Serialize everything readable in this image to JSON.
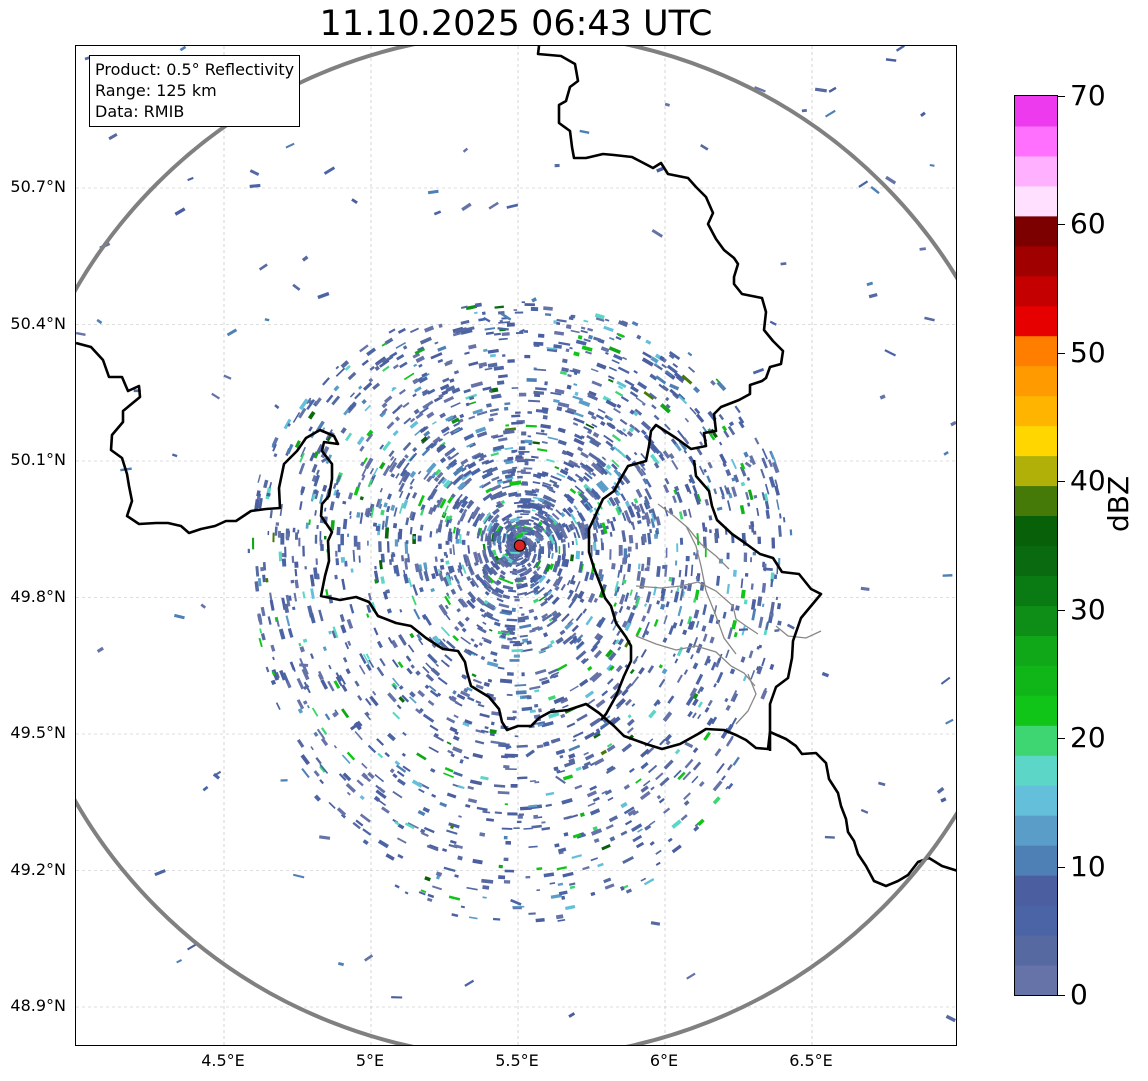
{
  "title": "11.10.2025 06:43 UTC",
  "info_box": {
    "product": "Product: 0.5° Reflectivity",
    "range": "Range: 125 km",
    "data": "Data: RMIB"
  },
  "map": {
    "lat_ticks": [
      {
        "value": 50.7,
        "label": "50.7°N"
      },
      {
        "value": 50.4,
        "label": "50.4°N"
      },
      {
        "value": 50.1,
        "label": "50.1°N"
      },
      {
        "value": 49.8,
        "label": "49.8°N"
      },
      {
        "value": 49.5,
        "label": "49.5°N"
      },
      {
        "value": 49.2,
        "label": "49.2°N"
      },
      {
        "value": 48.9,
        "label": "48.9°N"
      }
    ],
    "lon_ticks": [
      {
        "value": 4.5,
        "label": "4.5°E"
      },
      {
        "value": 5.0,
        "label": "5°E"
      },
      {
        "value": 5.5,
        "label": "5.5°E"
      },
      {
        "value": 6.0,
        "label": "6°E"
      },
      {
        "value": 6.5,
        "label": "6.5°E"
      }
    ],
    "lon_range": [
      4.0,
      7.0
    ],
    "lat_range": [
      48.8,
      51.0
    ],
    "radar_site": {
      "lon": 5.506,
      "lat": 49.914
    },
    "range_ring_km": 125,
    "gridlines": true,
    "colors": {
      "border": "#000000",
      "admin": "#888888",
      "range_ring": "#808080",
      "radar_marker": "#dd2222"
    }
  },
  "colorbar": {
    "unit": "dBZ",
    "min": 0,
    "max": 70,
    "step": 2.5,
    "ticks": [
      {
        "value": 0,
        "label": "0"
      },
      {
        "value": 10,
        "label": "10"
      },
      {
        "value": 20,
        "label": "20"
      },
      {
        "value": 30,
        "label": "30"
      },
      {
        "value": 40,
        "label": "40"
      },
      {
        "value": 50,
        "label": "50"
      },
      {
        "value": 60,
        "label": "60"
      },
      {
        "value": 70,
        "label": "70"
      }
    ],
    "colors": [
      "#6673a8",
      "#566aa1",
      "#4a64a6",
      "#4a5ea0",
      "#4e80b5",
      "#5a9dc8",
      "#64bfdb",
      "#5cd6c6",
      "#3dd672",
      "#10c418",
      "#10b618",
      "#10a818",
      "#0e8e16",
      "#0a7a12",
      "#0a6a10",
      "#086008",
      "#467a08",
      "#b0b008",
      "#ffd600",
      "#ffb400",
      "#ff9a00",
      "#ff7e00",
      "#e60000",
      "#c40000",
      "#a00000",
      "#7d0000",
      "#ffe0ff",
      "#ffb0ff",
      "#ff70ff",
      "#ee3aee"
    ]
  }
}
